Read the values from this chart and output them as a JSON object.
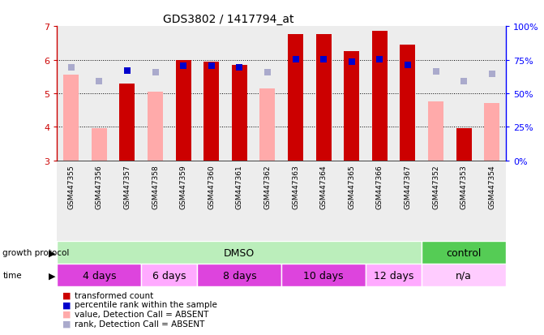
{
  "title": "GDS3802 / 1417794_at",
  "samples": [
    "GSM447355",
    "GSM447356",
    "GSM447357",
    "GSM447358",
    "GSM447359",
    "GSM447360",
    "GSM447361",
    "GSM447362",
    "GSM447363",
    "GSM447364",
    "GSM447365",
    "GSM447366",
    "GSM447367",
    "GSM447352",
    "GSM447353",
    "GSM447354"
  ],
  "red_bars": [
    null,
    null,
    5.3,
    null,
    6.0,
    5.95,
    5.85,
    null,
    6.75,
    6.75,
    6.25,
    6.85,
    6.45,
    null,
    3.95,
    null
  ],
  "pink_bars": [
    5.55,
    3.95,
    null,
    5.05,
    null,
    null,
    null,
    5.15,
    null,
    null,
    null,
    null,
    null,
    4.75,
    null,
    4.7
  ],
  "blue_squares": [
    5.78,
    5.35,
    5.67,
    5.62,
    5.82,
    5.83,
    5.78,
    5.62,
    6.02,
    6.02,
    5.95,
    6.02,
    5.85,
    5.65,
    5.35,
    5.58
  ],
  "blue_present": [
    false,
    false,
    true,
    false,
    true,
    true,
    true,
    false,
    true,
    true,
    true,
    true,
    true,
    false,
    false,
    false
  ],
  "ylim_left": [
    3,
    7
  ],
  "ylim_right": [
    0,
    100
  ],
  "yticks_left": [
    3,
    4,
    5,
    6,
    7
  ],
  "yticks_right": [
    0,
    25,
    50,
    75,
    100
  ],
  "ytick_labels_right": [
    "0%",
    "25%",
    "50%",
    "75%",
    "100%"
  ],
  "protocol_groups": [
    {
      "label": "DMSO",
      "start": 0,
      "end": 12,
      "color": "#bbeebb"
    },
    {
      "label": "control",
      "start": 13,
      "end": 15,
      "color": "#55cc55"
    }
  ],
  "time_groups": [
    {
      "label": "4 days",
      "start": 0,
      "end": 2,
      "color": "#ee66ee"
    },
    {
      "label": "6 days",
      "start": 3,
      "end": 4,
      "color": "#ffaaff"
    },
    {
      "label": "8 days",
      "start": 5,
      "end": 7,
      "color": "#ee66ee"
    },
    {
      "label": "10 days",
      "start": 8,
      "end": 10,
      "color": "#ee66ee"
    },
    {
      "label": "12 days",
      "start": 11,
      "end": 12,
      "color": "#ffaaff"
    },
    {
      "label": "n/a",
      "start": 13,
      "end": 15,
      "color": "#ffccff"
    }
  ],
  "color_red": "#cc0000",
  "color_pink": "#ffaaaa",
  "color_blue_present": "#0000cc",
  "color_blue_absent": "#aaaacc",
  "color_col_bg": "#cccccc",
  "bar_width": 0.55,
  "dot_size": 40,
  "fig_bg": "#ffffff"
}
